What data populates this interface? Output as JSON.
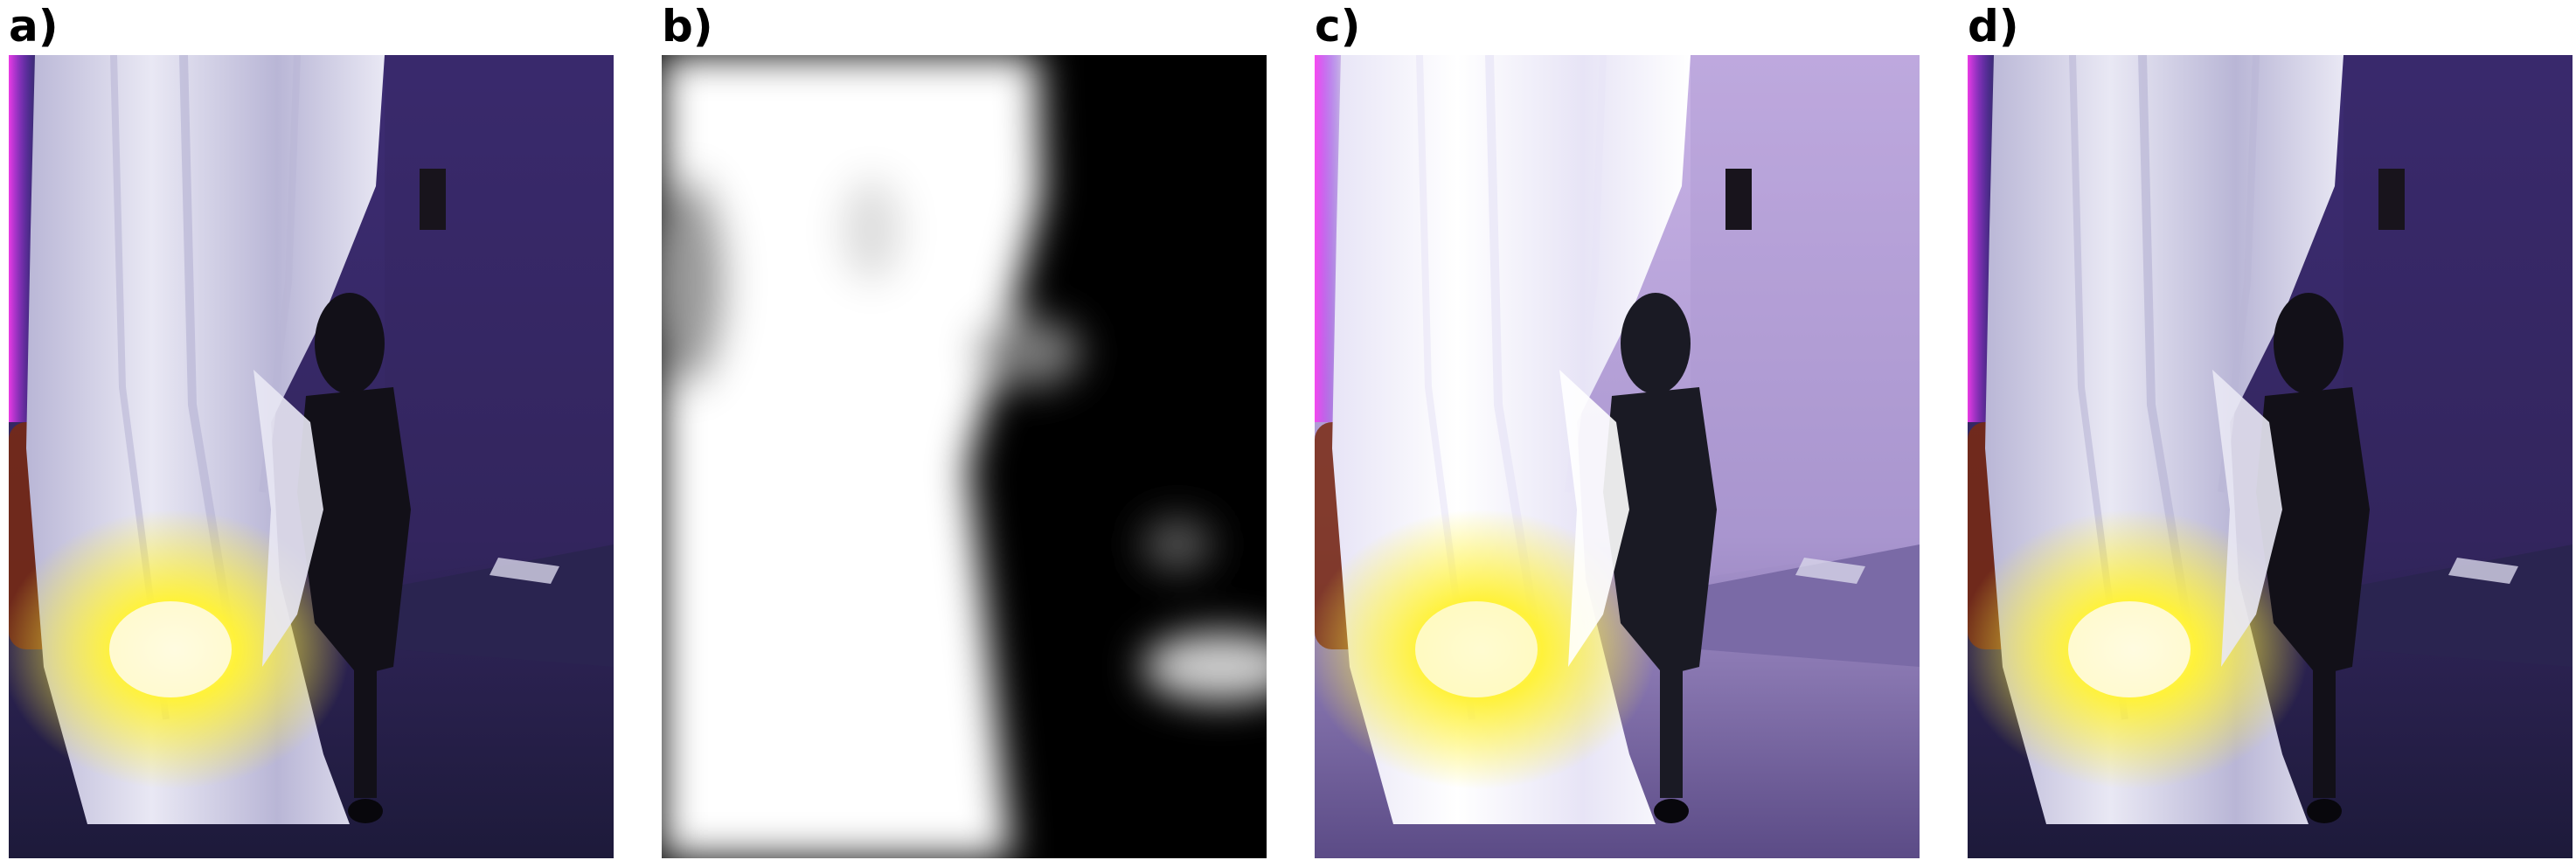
{
  "panels": [
    {
      "label": "a)",
      "variant": "input"
    },
    {
      "label": "b)",
      "variant": "mask"
    },
    {
      "label": "c)",
      "variant": "enhanced"
    },
    {
      "label": "d)",
      "variant": "output"
    }
  ],
  "colors": {
    "background": "#ffffff",
    "wall_purple": "#3a2a70",
    "curtain_white": "#f2f0f6",
    "lamp_yellow": "#fff23a",
    "mask_white": "#ffffff",
    "mask_black": "#000000"
  }
}
